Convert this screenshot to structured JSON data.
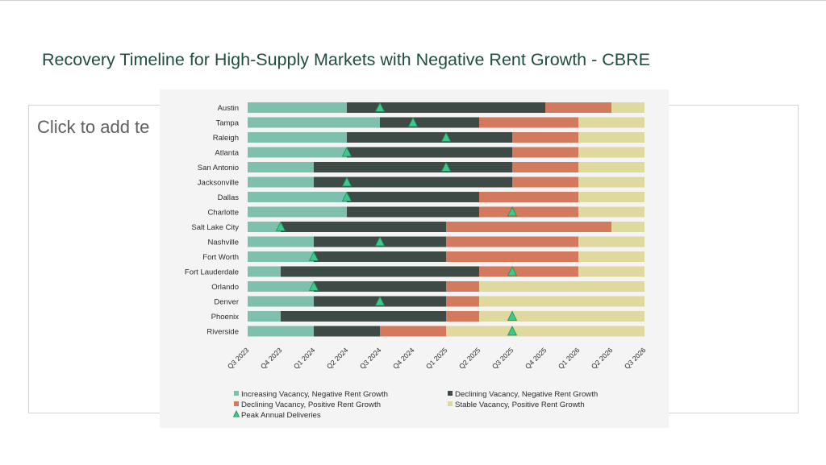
{
  "slide": {
    "title": "Recovery Timeline for High-Supply Markets with Negative Rent Growth - CBRE",
    "placeholder": "Click to add te"
  },
  "chart_data": {
    "type": "bar",
    "orientation": "horizontal-stacked-timeline",
    "x_ticks": [
      "Q3 2023",
      "Q4 2023",
      "Q1 2024",
      "Q2 2024",
      "Q3 2024",
      "Q4 2024",
      "Q1 2025",
      "Q2 2025",
      "Q3 2025",
      "Q4 2025",
      "Q1 2026",
      "Q2 2026",
      "Q3 2026"
    ],
    "legend_position": "bottom",
    "phases": [
      {
        "key": "inc",
        "name": "Increasing Vacancy, Negative Rent Growth",
        "color": "#7fbfae"
      },
      {
        "key": "dec_neg",
        "name": "Declining Vacancy, Negative Rent Growth",
        "color": "#3d4a46"
      },
      {
        "key": "dec_pos",
        "name": "Declining Vacancy, Positive Rent Growth",
        "color": "#d2795e"
      },
      {
        "key": "stable",
        "name": "Stable Vacancy, Positive Rent Growth",
        "color": "#dfd9a0"
      }
    ],
    "peak_marker": {
      "name": "Peak Annual Deliveries",
      "color": "#3ec98a"
    },
    "markets": [
      {
        "name": "Austin",
        "b1": "Q2 2024",
        "b2": "Q4 2025",
        "b3": "Q2 2026",
        "peak": "Q3 2024"
      },
      {
        "name": "Tampa",
        "b1": "Q3 2024",
        "b2": "Q2 2025",
        "b3": "Q1 2026",
        "peak": "Q4 2024"
      },
      {
        "name": "Raleigh",
        "b1": "Q2 2024",
        "b2": "Q3 2025",
        "b3": "Q1 2026",
        "peak": "Q1 2025"
      },
      {
        "name": "Atlanta",
        "b1": "Q2 2024",
        "b2": "Q3 2025",
        "b3": "Q1 2026",
        "peak": "Q2 2024"
      },
      {
        "name": "San Antonio",
        "b1": "Q1 2024",
        "b2": "Q3 2025",
        "b3": "Q1 2026",
        "peak": "Q1 2025"
      },
      {
        "name": "Jacksonville",
        "b1": "Q1 2024",
        "b2": "Q3 2025",
        "b3": "Q1 2026",
        "peak": "Q2 2024"
      },
      {
        "name": "Dallas",
        "b1": "Q2 2024",
        "b2": "Q2 2025",
        "b3": "Q1 2026",
        "peak": "Q2 2024"
      },
      {
        "name": "Charlotte",
        "b1": "Q2 2024",
        "b2": "Q2 2025",
        "b3": "Q1 2026",
        "peak": "Q3 2025"
      },
      {
        "name": "Salt Lake City",
        "b1": "Q4 2023",
        "b2": "Q1 2025",
        "b3": "Q2 2026",
        "peak": "Q4 2023"
      },
      {
        "name": "Nashville",
        "b1": "Q1 2024",
        "b2": "Q1 2025",
        "b3": "Q1 2026",
        "peak": "Q3 2024"
      },
      {
        "name": "Fort Worth",
        "b1": "Q1 2024",
        "b2": "Q1 2025",
        "b3": "Q1 2026",
        "peak": "Q1 2024"
      },
      {
        "name": "Fort Lauderdale",
        "b1": "Q4 2023",
        "b2": "Q2 2025",
        "b3": "Q1 2026",
        "peak": "Q3 2025"
      },
      {
        "name": "Orlando",
        "b1": "Q1 2024",
        "b2": "Q1 2025",
        "b3": "Q2 2025",
        "peak": "Q1 2024"
      },
      {
        "name": "Denver",
        "b1": "Q1 2024",
        "b2": "Q1 2025",
        "b3": "Q2 2025",
        "peak": "Q3 2024"
      },
      {
        "name": "Phoenix",
        "b1": "Q4 2023",
        "b2": "Q1 2025",
        "b3": "Q2 2025",
        "peak": "Q3 2025"
      },
      {
        "name": "Riverside",
        "b1": "Q1 2024",
        "b2": "Q3 2024",
        "b3": "Q1 2025",
        "peak": "Q3 2025"
      }
    ]
  }
}
